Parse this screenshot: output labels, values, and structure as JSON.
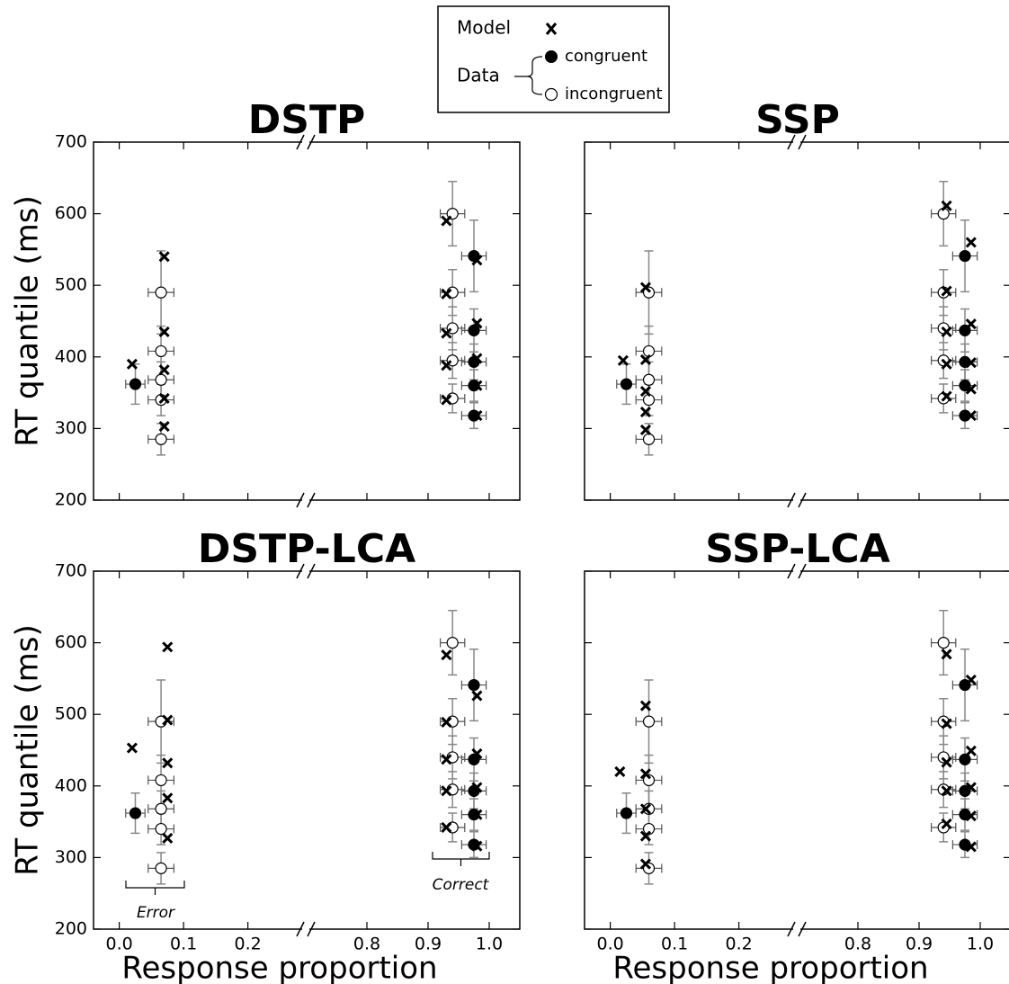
{
  "legend_group": "Data",
  "chart_data": [
    {
      "type": "scatter",
      "title": "DSTP",
      "ylabel": "RT quantile (ms)",
      "xlim": [
        -0.04,
        1.05
      ],
      "xbreak": [
        0.29,
        0.7
      ],
      "ylim": [
        200,
        700
      ],
      "yticks": [
        200,
        300,
        400,
        500,
        600,
        700
      ],
      "xticks": [
        0,
        0.1,
        0.2,
        0.8,
        0.9,
        1
      ],
      "series": [
        {
          "name": "congruent",
          "color": "#000000",
          "x": [
            0.025,
            0.975,
            0.975,
            0.975,
            0.975,
            0.975
          ],
          "values": [
            362,
            318,
            360,
            393,
            437,
            541
          ],
          "x_err": [
            0.015,
            0.02,
            0.02,
            0.02,
            0.02,
            0.02
          ],
          "y_err": [
            28,
            18,
            22,
            25,
            30,
            50
          ]
        },
        {
          "name": "incongruent",
          "color": "#ffffff",
          "x": [
            0.065,
            0.065,
            0.065,
            0.065,
            0.065,
            0.94,
            0.94,
            0.94,
            0.94,
            0.94
          ],
          "values": [
            285,
            340,
            368,
            408,
            490,
            342,
            395,
            440,
            490,
            600
          ],
          "x_err": [
            0.02,
            0.02,
            0.02,
            0.02,
            0.02,
            0.02,
            0.02,
            0.02,
            0.02,
            0.02
          ],
          "y_err": [
            22,
            22,
            25,
            35,
            58,
            20,
            25,
            30,
            32,
            45
          ]
        },
        {
          "name": "Model",
          "color": "#000000",
          "x": [
            0.02,
            0.07,
            0.07,
            0.07,
            0.07,
            0.07,
            0.93,
            0.93,
            0.93,
            0.93,
            0.93,
            0.98,
            0.98,
            0.98,
            0.98,
            0.98
          ],
          "values": [
            390,
            303,
            342,
            382,
            435,
            540,
            340,
            388,
            433,
            488,
            590,
            318,
            360,
            398,
            447,
            535
          ]
        }
      ]
    },
    {
      "type": "scatter",
      "title": "SSP",
      "xlim": [
        -0.04,
        1.05
      ],
      "xbreak": [
        0.29,
        0.7
      ],
      "ylim": [
        200,
        700
      ],
      "yticks": [
        200,
        300,
        400,
        500,
        600,
        700
      ],
      "xticks": [
        0,
        0.1,
        0.2,
        0.8,
        0.9,
        1
      ],
      "y_tick_labels": false,
      "series": [
        {
          "name": "congruent",
          "color": "#000000",
          "x": [
            0.025,
            0.975,
            0.975,
            0.975,
            0.975,
            0.975
          ],
          "values": [
            362,
            318,
            360,
            393,
            437,
            541
          ],
          "x_err": [
            0.015,
            0.02,
            0.02,
            0.02,
            0.02,
            0.02
          ],
          "y_err": [
            28,
            18,
            22,
            25,
            30,
            50
          ]
        },
        {
          "name": "incongruent",
          "color": "#ffffff",
          "x": [
            0.06,
            0.06,
            0.06,
            0.06,
            0.06,
            0.94,
            0.94,
            0.94,
            0.94,
            0.94
          ],
          "values": [
            285,
            340,
            368,
            408,
            490,
            342,
            395,
            440,
            490,
            600
          ],
          "x_err": [
            0.02,
            0.02,
            0.02,
            0.02,
            0.02,
            0.02,
            0.02,
            0.02,
            0.02,
            0.02
          ],
          "y_err": [
            22,
            22,
            25,
            35,
            58,
            20,
            25,
            30,
            32,
            45
          ]
        },
        {
          "name": "Model",
          "color": "#000000",
          "x": [
            0.02,
            0.055,
            0.055,
            0.055,
            0.055,
            0.055,
            0.945,
            0.945,
            0.945,
            0.945,
            0.945,
            0.985,
            0.985,
            0.985,
            0.985,
            0.985
          ],
          "values": [
            395,
            298,
            323,
            352,
            396,
            497,
            345,
            390,
            435,
            492,
            611,
            318,
            355,
            392,
            446,
            560
          ]
        }
      ]
    },
    {
      "type": "scatter",
      "title": "DSTP-LCA",
      "ylabel": "RT quantile (ms)",
      "xlabel": "Response proportion",
      "xlim": [
        -0.04,
        1.05
      ],
      "xbreak": [
        0.29,
        0.7
      ],
      "ylim": [
        200,
        700
      ],
      "yticks": [
        200,
        300,
        400,
        500,
        600,
        700
      ],
      "xticks": [
        {
          "value": 0,
          "label": "0.0"
        },
        0.1,
        0.2,
        0.8,
        0.9,
        {
          "value": 1,
          "label": "1.0"
        }
      ],
      "annotations": [
        "Error",
        "Correct"
      ],
      "series": [
        {
          "name": "congruent",
          "color": "#000000",
          "x": [
            0.025,
            0.975,
            0.975,
            0.975,
            0.975,
            0.975
          ],
          "values": [
            362,
            318,
            360,
            393,
            437,
            541
          ],
          "x_err": [
            0.015,
            0.02,
            0.02,
            0.02,
            0.02,
            0.02
          ],
          "y_err": [
            28,
            18,
            22,
            25,
            30,
            50
          ]
        },
        {
          "name": "incongruent",
          "color": "#ffffff",
          "x": [
            0.065,
            0.065,
            0.065,
            0.065,
            0.065,
            0.94,
            0.94,
            0.94,
            0.94,
            0.94
          ],
          "values": [
            285,
            340,
            368,
            408,
            490,
            342,
            395,
            440,
            490,
            600
          ],
          "x_err": [
            0.02,
            0.02,
            0.02,
            0.02,
            0.02,
            0.02,
            0.02,
            0.02,
            0.02,
            0.02
          ],
          "y_err": [
            22,
            22,
            25,
            35,
            58,
            20,
            25,
            30,
            32,
            45
          ]
        },
        {
          "name": "Model",
          "color": "#000000",
          "x": [
            0.02,
            0.075,
            0.075,
            0.075,
            0.075,
            0.075,
            0.93,
            0.93,
            0.93,
            0.93,
            0.93,
            0.98,
            0.98,
            0.98,
            0.98,
            0.98
          ],
          "values": [
            453,
            327,
            383,
            432,
            492,
            594,
            342,
            393,
            437,
            489,
            583,
            316,
            360,
            398,
            445,
            526
          ]
        }
      ]
    },
    {
      "type": "scatter",
      "title": "SSP-LCA",
      "xlabel": "Response proportion",
      "xlim": [
        -0.04,
        1.05
      ],
      "xbreak": [
        0.29,
        0.7
      ],
      "ylim": [
        200,
        700
      ],
      "yticks": [
        200,
        300,
        400,
        500,
        600,
        700
      ],
      "xticks": [
        {
          "value": 0,
          "label": "0.0"
        },
        0.1,
        0.2,
        0.8,
        0.9,
        {
          "value": 1,
          "label": "1.0"
        }
      ],
      "y_tick_labels": false,
      "series": [
        {
          "name": "congruent",
          "color": "#000000",
          "x": [
            0.025,
            0.975,
            0.975,
            0.975,
            0.975,
            0.975
          ],
          "values": [
            362,
            318,
            360,
            393,
            437,
            541
          ],
          "x_err": [
            0.015,
            0.02,
            0.02,
            0.02,
            0.02,
            0.02
          ],
          "y_err": [
            28,
            18,
            22,
            25,
            30,
            50
          ]
        },
        {
          "name": "incongruent",
          "color": "#ffffff",
          "x": [
            0.06,
            0.06,
            0.06,
            0.06,
            0.06,
            0.94,
            0.94,
            0.94,
            0.94,
            0.94
          ],
          "values": [
            285,
            340,
            368,
            408,
            490,
            342,
            395,
            440,
            490,
            600
          ],
          "x_err": [
            0.02,
            0.02,
            0.02,
            0.02,
            0.02,
            0.02,
            0.02,
            0.02,
            0.02,
            0.02
          ],
          "y_err": [
            22,
            22,
            25,
            35,
            58,
            20,
            25,
            30,
            32,
            45
          ]
        },
        {
          "name": "Model",
          "color": "#000000",
          "x": [
            0.015,
            0.055,
            0.055,
            0.055,
            0.055,
            0.055,
            0.945,
            0.945,
            0.945,
            0.945,
            0.945,
            0.985,
            0.985,
            0.985,
            0.985,
            0.985
          ],
          "values": [
            420,
            291,
            330,
            368,
            417,
            512,
            347,
            393,
            433,
            487,
            584,
            315,
            358,
            398,
            449,
            548
          ]
        }
      ]
    }
  ]
}
